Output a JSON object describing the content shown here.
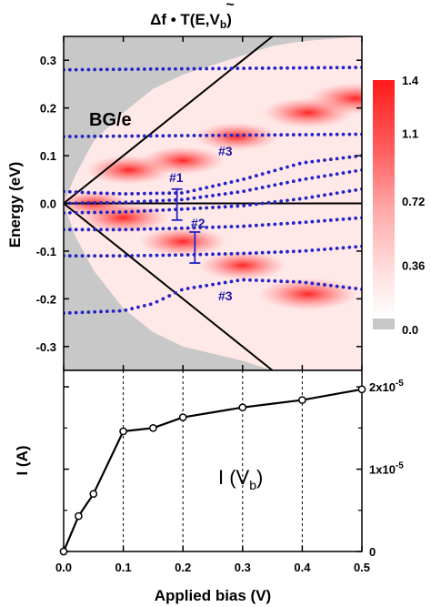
{
  "chart_data": [
    {
      "type": "heatmap",
      "title_parts": {
        "pre": "Δf • T",
        "args": "(E,V",
        "sub": "b",
        "post": ")"
      },
      "ylabel": "Energy (eV)",
      "xlim": [
        0.0,
        0.5
      ],
      "ylim": [
        -0.35,
        0.35
      ],
      "yticks": [
        "0.3",
        "0.2",
        "0.1",
        "0.0",
        "-0.1",
        "-0.2",
        "-0.3"
      ],
      "ytick_values": [
        0.3,
        0.2,
        0.1,
        0.0,
        -0.1,
        -0.2,
        -0.3
      ],
      "colorbar": {
        "ticks": [
          "1.4",
          "1.1",
          "0.72",
          "0.36",
          "0.0"
        ],
        "tick_values": [
          1.4,
          1.1,
          0.72,
          0.36,
          0.0
        ],
        "low_color": "#c8c8c8",
        "high_color": "#ff2020"
      },
      "annotations": {
        "label": "BG/e",
        "level_3_upper": "#3",
        "level_1": "#1",
        "level_2": "#2",
        "level_3_lower": "#3"
      },
      "bias_window_lines": {
        "slope": 1.0,
        "intercept": 0.0,
        "x_range": [
          0.0,
          0.35
        ]
      },
      "zero_line_y": 0.0,
      "dotted_levels": [
        {
          "x": [
            0.0,
            0.5
          ],
          "y": [
            0.28,
            0.285
          ]
        },
        {
          "x": [
            0.0,
            0.5
          ],
          "y": [
            0.14,
            0.145
          ]
        },
        {
          "x": [
            0.0,
            0.05,
            0.1,
            0.2,
            0.3,
            0.4,
            0.5
          ],
          "y": [
            0.025,
            0.022,
            0.02,
            0.022,
            0.05,
            0.085,
            0.1
          ]
        },
        {
          "x": [
            0.0,
            0.1,
            0.2,
            0.3,
            0.4,
            0.5
          ],
          "y": [
            0.0,
            0.002,
            0.008,
            0.025,
            0.05,
            0.07
          ]
        },
        {
          "x": [
            0.0,
            0.1,
            0.2,
            0.3,
            0.4,
            0.5
          ],
          "y": [
            -0.02,
            -0.018,
            -0.012,
            -0.005,
            0.01,
            0.03
          ]
        },
        {
          "x": [
            0.0,
            0.1,
            0.2,
            0.3,
            0.4,
            0.5
          ],
          "y": [
            -0.055,
            -0.055,
            -0.052,
            -0.048,
            -0.04,
            -0.03
          ]
        },
        {
          "x": [
            0.0,
            0.1,
            0.2,
            0.3,
            0.4,
            0.5
          ],
          "y": [
            -0.11,
            -0.11,
            -0.108,
            -0.105,
            -0.1,
            -0.09
          ]
        },
        {
          "x": [
            0.0,
            0.1,
            0.15,
            0.2,
            0.3,
            0.4,
            0.5
          ],
          "y": [
            -0.23,
            -0.225,
            -0.21,
            -0.18,
            -0.16,
            -0.165,
            -0.18
          ]
        }
      ],
      "error_bars": [
        {
          "label": "#1",
          "x": 0.19,
          "y_low": -0.035,
          "y_high": 0.03
        },
        {
          "label": "#2",
          "x": 0.22,
          "y_low": -0.125,
          "y_high": -0.06
        }
      ],
      "hotspots": [
        {
          "x": 0.11,
          "y": 0.07,
          "intensity": 1.0
        },
        {
          "x": 0.2,
          "y": 0.09,
          "intensity": 0.9
        },
        {
          "x": 0.29,
          "y": 0.14,
          "intensity": 0.9
        },
        {
          "x": 0.41,
          "y": 0.19,
          "intensity": 1.1
        },
        {
          "x": 0.49,
          "y": 0.22,
          "intensity": 1.2
        },
        {
          "x": 0.1,
          "y": -0.03,
          "intensity": 1.1
        },
        {
          "x": 0.2,
          "y": -0.08,
          "intensity": 1.0
        },
        {
          "x": 0.3,
          "y": -0.13,
          "intensity": 1.0
        },
        {
          "x": 0.41,
          "y": -0.19,
          "intensity": 1.3
        },
        {
          "x": 0.05,
          "y": 0.0,
          "intensity": 0.6
        }
      ]
    },
    {
      "type": "line",
      "x": [
        0.0,
        0.025,
        0.05,
        0.1,
        0.15,
        0.2,
        0.3,
        0.4,
        0.5
      ],
      "y": [
        0.0,
        4.3e-06,
        7e-06,
        1.46e-05,
        1.5e-05,
        1.63e-05,
        1.75e-05,
        1.84e-05,
        1.97e-05
      ],
      "xlim": [
        0.0,
        0.5
      ],
      "ylim": [
        0.0,
        2.2e-05
      ],
      "xticks": [
        "0.0",
        "0.1",
        "0.2",
        "0.3",
        "0.4",
        "0.5"
      ],
      "xtick_values": [
        0.0,
        0.1,
        0.2,
        0.3,
        0.4,
        0.5
      ],
      "yticks_right": [
        {
          "value": 2e-05,
          "base": "2x10",
          "exp": "-5"
        },
        {
          "value": 1e-05,
          "base": "1x10",
          "exp": "-5"
        },
        {
          "value": 0,
          "base": "0",
          "exp": ""
        }
      ],
      "xlabel": "Applied bias  (V)",
      "ylabel": "I  (A)",
      "curve_label": {
        "pre": "I (V",
        "sub": "b",
        "post": ")"
      },
      "vertical_guides_x": [
        0.1,
        0.2,
        0.3,
        0.4
      ]
    }
  ]
}
